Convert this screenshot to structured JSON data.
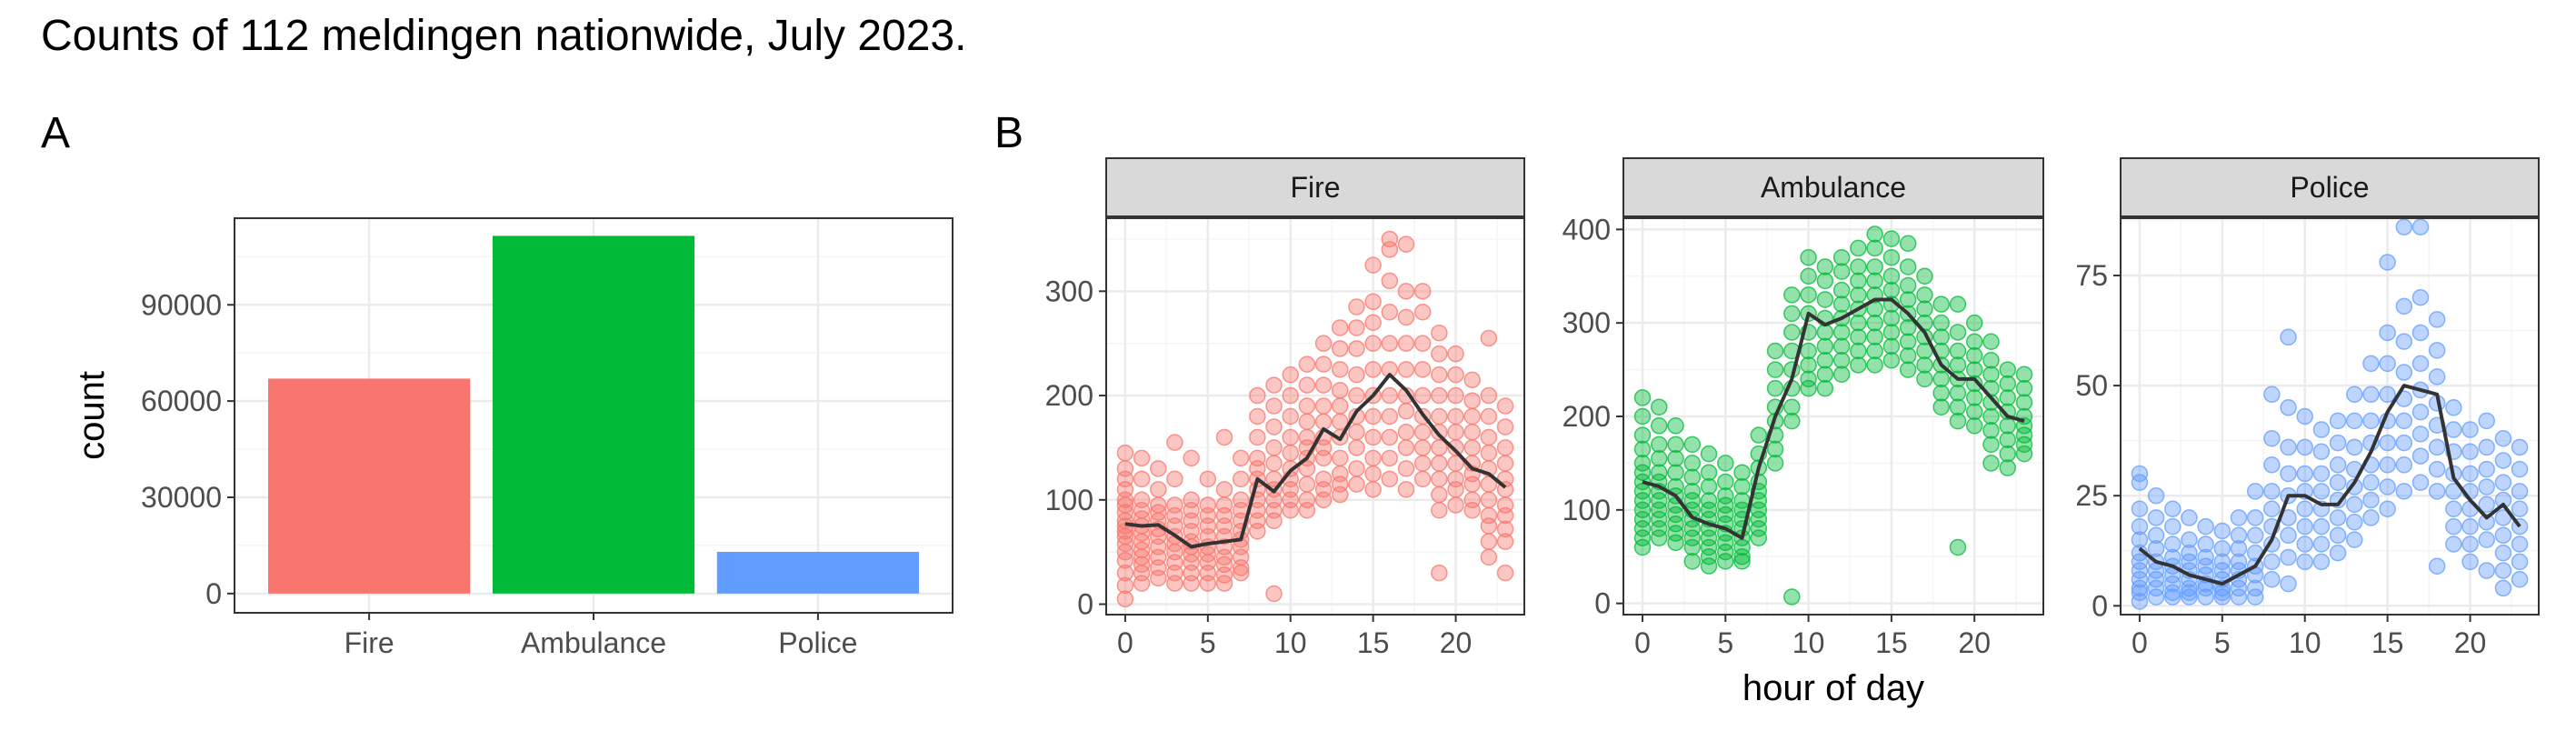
{
  "figure": {
    "title": "Counts of 112 meldingen nationwide, July 2023."
  },
  "chart_data": [
    {
      "panel_tag": "A",
      "type": "bar",
      "categories": [
        "Fire",
        "Ambulance",
        "Police"
      ],
      "values": [
        67000,
        111500,
        13000
      ],
      "colors": [
        "#F8766D",
        "#00BA38",
        "#619CFF"
      ],
      "xlabel": "",
      "ylabel": "count",
      "ylim": [
        -6000,
        117000
      ],
      "yticks": [
        0,
        30000,
        60000,
        90000
      ],
      "grid": true
    },
    {
      "panel_tag": "B",
      "type": "scatter",
      "xlabel": "hour of day",
      "ylabel": "",
      "grid": true,
      "facets": [
        {
          "strip": "Fire",
          "color": "#F8766D",
          "xlim": [
            -1.15,
            24.15
          ],
          "xticks": [
            0,
            5,
            10,
            15,
            20
          ],
          "ylim": [
            -10,
            370
          ],
          "yticks": [
            100,
            200,
            300
          ],
          "yticks_shown": [
            0,
            100,
            200,
            300
          ],
          "mean_line": [
            77,
            75,
            76,
            66,
            55,
            58,
            60,
            62,
            120,
            108,
            128,
            140,
            168,
            158,
            185,
            200,
            220,
            205,
            182,
            162,
            147,
            130,
            125,
            112
          ],
          "points": {
            "0": [
              145,
              130,
              120,
              110,
              100,
              95,
              88,
              80,
              75,
              70,
              65,
              58,
              50,
              42,
              30,
              18,
              5
            ],
            "1": [
              140,
              120,
              100,
              90,
              82,
              75,
              68,
              60,
              52,
              45,
              38,
              30,
              20
            ],
            "2": [
              130,
              110,
              95,
              88,
              80,
              72,
              65,
              55,
              45,
              35,
              25
            ],
            "3": [
              155,
              120,
              95,
              85,
              75,
              65,
              58,
              50,
              40,
              30,
              20
            ],
            "4": [
              140,
              100,
              90,
              80,
              70,
              60,
              55,
              48,
              40,
              30,
              20
            ],
            "5": [
              120,
              95,
              85,
              75,
              65,
              55,
              48,
              40,
              30,
              20
            ],
            "6": [
              160,
              110,
              95,
              85,
              75,
              65,
              55,
              45,
              38,
              28,
              20
            ],
            "7": [
              140,
              120,
              100,
              90,
              80,
              70,
              62,
              55,
              45,
              35,
              30
            ],
            "8": [
              200,
              180,
              160,
              140,
              130,
              120,
              110,
              100,
              90,
              80,
              70
            ],
            "9": [
              210,
              190,
              170,
              150,
              135,
              120,
              110,
              100,
              90,
              80,
              10
            ],
            "10": [
              220,
              200,
              180,
              160,
              145,
              130,
              120,
              110,
              100,
              90
            ],
            "11": [
              230,
              210,
              190,
              175,
              160,
              150,
              140,
              130,
              115,
              100,
              90
            ],
            "12": [
              250,
              230,
              210,
              190,
              175,
              160,
              150,
              140,
              120,
              110,
              100
            ],
            "13": [
              265,
              245,
              225,
              205,
              190,
              175,
              160,
              140,
              125,
              115,
              105
            ],
            "14": [
              285,
              265,
              245,
              220,
              200,
              180,
              165,
              150,
              130,
              115
            ],
            "15": [
              325,
              290,
              270,
              250,
              225,
              200,
              180,
              160,
              140,
              125,
              110
            ],
            "16": [
              350,
              340,
              310,
              280,
              250,
              225,
              200,
              180,
              160,
              140,
              120
            ],
            "17": [
              345,
              300,
              275,
              250,
              225,
              200,
              185,
              165,
              150,
              130,
              110
            ],
            "18": [
              300,
              280,
              250,
              225,
              200,
              180,
              165,
              150,
              135,
              120
            ],
            "19": [
              260,
              240,
              220,
              200,
              180,
              165,
              150,
              135,
              120,
              105,
              90,
              30
            ],
            "20": [
              240,
              220,
              200,
              180,
              165,
              150,
              135,
              120,
              110,
              95
            ],
            "21": [
              215,
              195,
              180,
              165,
              150,
              135,
              125,
              115,
              100,
              90
            ],
            "22": [
              255,
              200,
              180,
              160,
              145,
              130,
              115,
              100,
              85,
              75,
              60,
              45
            ],
            "23": [
              190,
              170,
              150,
              135,
              120,
              110,
              95,
              85,
              72,
              60,
              30
            ]
          }
        },
        {
          "strip": "Ambulance",
          "color": "#00BA38",
          "xlim": [
            -1.15,
            24.15
          ],
          "xticks": [
            0,
            5,
            10,
            15,
            20
          ],
          "ylim": [
            -12,
            412
          ],
          "yticks": [
            0,
            100,
            200,
            300,
            400
          ],
          "yticks_shown": [
            0,
            100,
            200,
            300,
            400
          ],
          "mean_line": [
            130,
            125,
            115,
            92,
            85,
            80,
            70,
            145,
            200,
            240,
            310,
            298,
            305,
            315,
            325,
            325,
            310,
            290,
            255,
            240,
            240,
            220,
            200,
            195
          ],
          "points": {
            "0": [
              220,
              200,
              180,
              165,
              150,
              140,
              130,
              120,
              110,
              100,
              90,
              80,
              70,
              60
            ],
            "1": [
              210,
              190,
              170,
              155,
              140,
              130,
              120,
              110,
              100,
              90,
              80,
              70
            ],
            "2": [
              190,
              170,
              155,
              140,
              125,
              115,
              105,
              95,
              85,
              75,
              65
            ],
            "3": [
              170,
              150,
              135,
              120,
              110,
              100,
              90,
              80,
              70,
              60,
              45
            ],
            "4": [
              160,
              140,
              125,
              110,
              100,
              90,
              80,
              70,
              60,
              50,
              40
            ],
            "5": [
              150,
              130,
              115,
              105,
              95,
              85,
              75,
              65,
              55,
              45
            ],
            "6": [
              140,
              125,
              110,
              100,
              90,
              80,
              70,
              60,
              50,
              45
            ],
            "7": [
              180,
              160,
              145,
              130,
              120,
              110,
              100,
              90,
              80,
              70
            ],
            "8": [
              270,
              250,
              230,
              210,
              195,
              180,
              165,
              150
            ],
            "9": [
              330,
              310,
              290,
              270,
              250,
              230,
              210,
              195,
              7
            ],
            "10": [
              370,
              350,
              330,
              310,
              290,
              270,
              255,
              240,
              230
            ],
            "11": [
              360,
              345,
              325,
              305,
              290,
              275,
              260,
              245,
              230
            ],
            "12": [
              370,
              355,
              335,
              320,
              305,
              290,
              275,
              260,
              245
            ],
            "13": [
              380,
              360,
              345,
              330,
              315,
              300,
              285,
              270,
              255
            ],
            "14": [
              395,
              380,
              360,
              345,
              330,
              315,
              300,
              285,
              270,
              255
            ],
            "15": [
              390,
              370,
              350,
              335,
              320,
              305,
              290,
              275,
              260
            ],
            "16": [
              385,
              360,
              340,
              325,
              310,
              295,
              280,
              265,
              250
            ],
            "17": [
              350,
              330,
              315,
              300,
              285,
              270,
              255,
              240
            ],
            "18": [
              320,
              300,
              285,
              270,
              255,
              240,
              225,
              210
            ],
            "19": [
              320,
              290,
              270,
              255,
              240,
              225,
              210,
              195,
              60
            ],
            "20": [
              300,
              280,
              265,
              250,
              235,
              220,
              205,
              190
            ],
            "21": [
              280,
              260,
              245,
              230,
              215,
              200,
              185,
              170,
              150
            ],
            "22": [
              250,
              235,
              220,
              205,
              190,
              175,
              160,
              145
            ],
            "23": [
              245,
              230,
              215,
              200,
              190,
              180,
              170,
              160
            ]
          }
        },
        {
          "strip": "Police",
          "color": "#619CFF",
          "xlim": [
            -1.15,
            24.15
          ],
          "xticks": [
            0,
            5,
            10,
            15,
            20
          ],
          "ylim": [
            -2,
            88
          ],
          "yticks": [
            0,
            25,
            50,
            75
          ],
          "yticks_shown": [
            0,
            25,
            50,
            75
          ],
          "mean_line": [
            13,
            10,
            9,
            7,
            6,
            5,
            7,
            9,
            15,
            25,
            25,
            23,
            23,
            28,
            35,
            44,
            50,
            49,
            48,
            29,
            24,
            20,
            23,
            18
          ],
          "points": {
            "0": [
              30,
              28,
              22,
              18,
              15,
              12,
              10,
              8,
              6,
              4,
              3,
              1
            ],
            "1": [
              25,
              20,
              16,
              13,
              10,
              8,
              6,
              4,
              2
            ],
            "2": [
              22,
              18,
              14,
              11,
              9,
              7,
              5,
              3,
              2
            ],
            "3": [
              20,
              15,
              12,
              10,
              8,
              6,
              4,
              3,
              2
            ],
            "4": [
              18,
              14,
              11,
              9,
              7,
              5,
              4,
              2
            ],
            "5": [
              17,
              13,
              10,
              8,
              6,
              4,
              3,
              2
            ],
            "6": [
              20,
              16,
              13,
              10,
              8,
              6,
              4,
              2
            ],
            "7": [
              26,
              20,
              16,
              12,
              9,
              7,
              4,
              2
            ],
            "8": [
              48,
              38,
              32,
              26,
              22,
              18,
              14,
              10,
              6
            ],
            "9": [
              61,
              45,
              36,
              30,
              25,
              20,
              16,
              11,
              5
            ],
            "10": [
              43,
              36,
              30,
              26,
              22,
              18,
              14,
              10
            ],
            "11": [
              40,
              35,
              30,
              26,
              22,
              18,
              14,
              10
            ],
            "12": [
              42,
              37,
              32,
              28,
              24,
              20,
              16,
              12
            ],
            "13": [
              48,
              42,
              36,
              31,
              27,
              23,
              19,
              15
            ],
            "14": [
              55,
              48,
              42,
              37,
              32,
              28,
              24,
              20
            ],
            "15": [
              78,
              62,
              55,
              48,
              42,
              37,
              32,
              27,
              22
            ],
            "16": [
              86,
              68,
              60,
              53,
              47,
              42,
              37,
              32,
              26
            ],
            "17": [
              86,
              70,
              62,
              55,
              49,
              44,
              39,
              34,
              28
            ],
            "18": [
              65,
              58,
              52,
              46,
              41,
              36,
              31,
              26,
              9
            ],
            "19": [
              45,
              40,
              35,
              30,
              26,
              22,
              18,
              14
            ],
            "20": [
              40,
              35,
              30,
              26,
              22,
              18,
              14,
              10
            ],
            "21": [
              42,
              36,
              31,
              27,
              23,
              19,
              15,
              8
            ],
            "22": [
              38,
              33,
              28,
              24,
              20,
              16,
              12,
              8,
              4
            ],
            "23": [
              36,
              31,
              26,
              22,
              18,
              14,
              10,
              6
            ]
          }
        }
      ]
    }
  ]
}
